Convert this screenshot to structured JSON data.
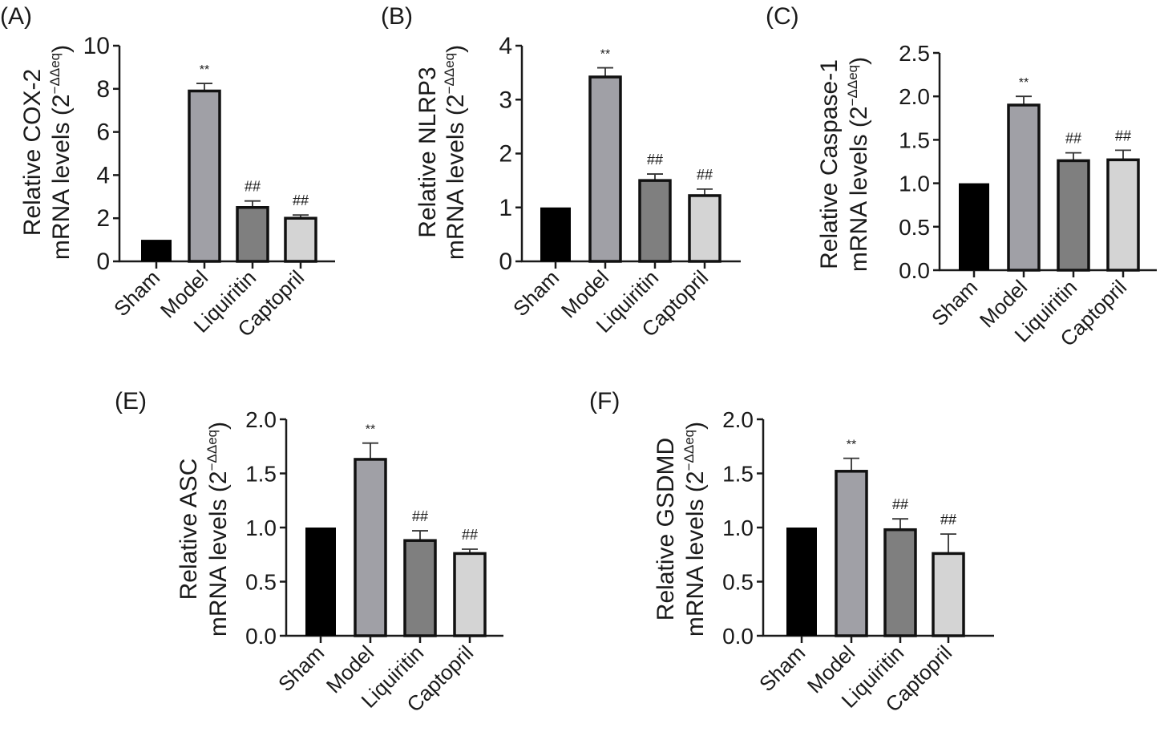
{
  "figure": {
    "colors": {
      "Sham": "#000000",
      "Model": "#a0a0a6",
      "Liquiritin": "#7f7f7f",
      "Captopril": "#d4d4d4",
      "axis": "#1a1a1a"
    }
  },
  "chart_data": [
    {
      "panel": "(A)",
      "type": "bar",
      "title": "",
      "ylabel_line1": "Relative COX-2",
      "ylabel_line2": "mRNA levels (2",
      "ylabel_sup": "−ΔΔeq",
      "ylabel_close": ")",
      "xlabel": "",
      "categories": [
        "Sham",
        "Model",
        "Liquiritin",
        "Captopril"
      ],
      "values": [
        1.0,
        7.9,
        2.5,
        2.0
      ],
      "errors": [
        0.0,
        0.35,
        0.3,
        0.15
      ],
      "annotations": [
        "",
        "**",
        "##",
        "##"
      ],
      "yticks": [
        "0",
        "2",
        "4",
        "6",
        "8",
        "10"
      ],
      "ytick_values": [
        0,
        2,
        4,
        6,
        8,
        10
      ],
      "ylim": [
        0,
        10
      ],
      "grid": false
    },
    {
      "panel": "(B)",
      "type": "bar",
      "title": "",
      "ylabel_line1": "Relative NLRP3",
      "ylabel_line2": "mRNA levels (2",
      "ylabel_sup": "−ΔΔeq",
      "ylabel_close": ")",
      "xlabel": "",
      "categories": [
        "Sham",
        "Model",
        "Liquiritin",
        "Captopril"
      ],
      "values": [
        1.0,
        3.42,
        1.5,
        1.22
      ],
      "errors": [
        0.0,
        0.17,
        0.12,
        0.12
      ],
      "annotations": [
        "",
        "**",
        "##",
        "##"
      ],
      "yticks": [
        "0",
        "1",
        "2",
        "3",
        "4"
      ],
      "ytick_values": [
        0,
        1,
        2,
        3,
        4
      ],
      "ylim": [
        0,
        4
      ],
      "grid": false
    },
    {
      "panel": "(C)",
      "type": "bar",
      "title": "",
      "ylabel_line1": "Relative Caspase-1",
      "ylabel_line2": "mRNA levels (2",
      "ylabel_sup": "−ΔΔeq",
      "ylabel_close": ")",
      "xlabel": "",
      "categories": [
        "Sham",
        "Model",
        "Liquiritin",
        "Captopril"
      ],
      "values": [
        1.0,
        1.9,
        1.26,
        1.27
      ],
      "errors": [
        0.0,
        0.1,
        0.09,
        0.11
      ],
      "annotations": [
        "",
        "**",
        "##",
        "##"
      ],
      "yticks": [
        "0.0",
        "0.5",
        "1.0",
        "1.5",
        "2.0",
        "2.5"
      ],
      "ytick_values": [
        0,
        0.5,
        1.0,
        1.5,
        2.0,
        2.5
      ],
      "ylim": [
        0,
        2.5
      ],
      "grid": false
    },
    {
      "panel": "(E)",
      "type": "bar",
      "title": "",
      "ylabel_line1": "Relative ASC",
      "ylabel_line2": "mRNA levels (2",
      "ylabel_sup": "−ΔΔeq",
      "ylabel_close": ")",
      "xlabel": "",
      "categories": [
        "Sham",
        "Model",
        "Liquiritin",
        "Captopril"
      ],
      "values": [
        1.0,
        1.63,
        0.88,
        0.76
      ],
      "errors": [
        0.0,
        0.15,
        0.09,
        0.04
      ],
      "annotations": [
        "",
        "**",
        "##",
        "##"
      ],
      "yticks": [
        "0.0",
        "0.5",
        "1.0",
        "1.5",
        "2.0"
      ],
      "ytick_values": [
        0,
        0.5,
        1.0,
        1.5,
        2.0
      ],
      "ylim": [
        0,
        2.0
      ],
      "grid": false
    },
    {
      "panel": "(F)",
      "type": "bar",
      "title": "",
      "ylabel_line1": "Relative GSDMD",
      "ylabel_line2": "mRNA levels (2",
      "ylabel_sup": "−ΔΔeq",
      "ylabel_close": ")",
      "xlabel": "",
      "categories": [
        "Sham",
        "Model",
        "Liquiritin",
        "Captopril"
      ],
      "values": [
        1.0,
        1.52,
        0.98,
        0.76
      ],
      "errors": [
        0.0,
        0.12,
        0.1,
        0.18
      ],
      "annotations": [
        "",
        "**",
        "##",
        "##"
      ],
      "yticks": [
        "0.0",
        "0.5",
        "1.0",
        "1.5",
        "2.0"
      ],
      "ytick_values": [
        0,
        0.5,
        1.0,
        1.5,
        2.0
      ],
      "ylim": [
        0,
        2.0
      ],
      "grid": false
    }
  ]
}
